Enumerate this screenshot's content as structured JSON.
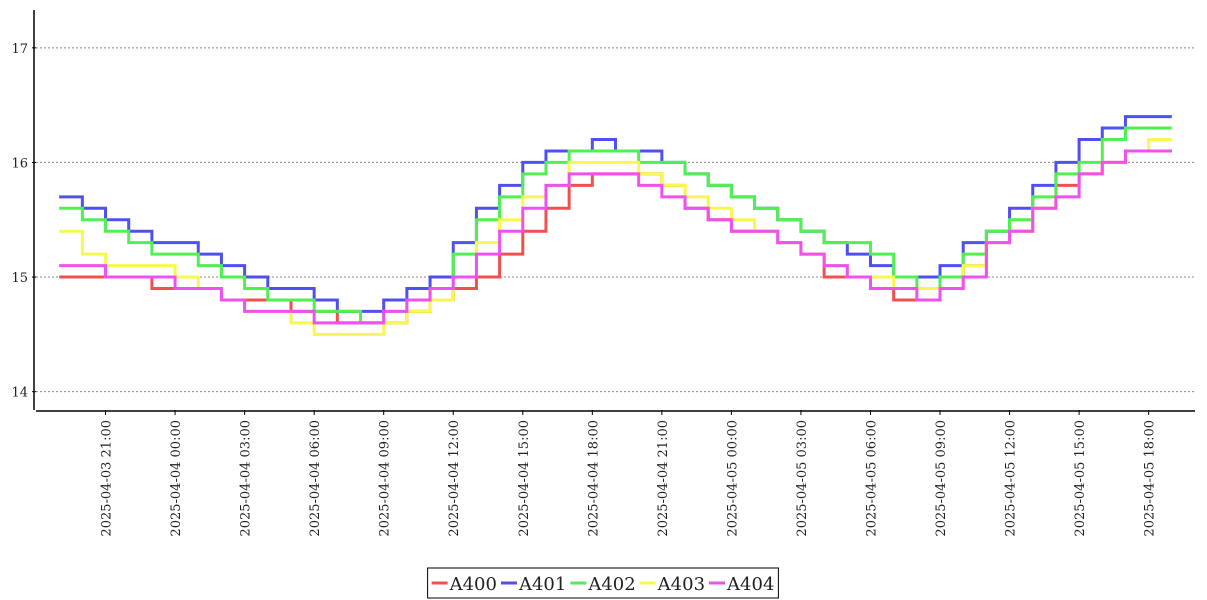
{
  "chart_data": {
    "type": "step-line",
    "x": [
      "2025-04-03 19:00",
      "2025-04-03 20:00",
      "2025-04-03 21:00",
      "2025-04-03 22:00",
      "2025-04-03 23:00",
      "2025-04-04 00:00",
      "2025-04-04 01:00",
      "2025-04-04 02:00",
      "2025-04-04 03:00",
      "2025-04-04 04:00",
      "2025-04-04 05:00",
      "2025-04-04 06:00",
      "2025-04-04 07:00",
      "2025-04-04 08:00",
      "2025-04-04 09:00",
      "2025-04-04 10:00",
      "2025-04-04 11:00",
      "2025-04-04 12:00",
      "2025-04-04 13:00",
      "2025-04-04 14:00",
      "2025-04-04 15:00",
      "2025-04-04 16:00",
      "2025-04-04 17:00",
      "2025-04-04 18:00",
      "2025-04-04 19:00",
      "2025-04-04 20:00",
      "2025-04-04 21:00",
      "2025-04-04 22:00",
      "2025-04-04 23:00",
      "2025-04-05 00:00",
      "2025-04-05 01:00",
      "2025-04-05 02:00",
      "2025-04-05 03:00",
      "2025-04-05 04:00",
      "2025-04-05 05:00",
      "2025-04-05 06:00",
      "2025-04-05 07:00",
      "2025-04-05 08:00",
      "2025-04-05 09:00",
      "2025-04-05 10:00",
      "2025-04-05 11:00",
      "2025-04-05 12:00",
      "2025-04-05 13:00",
      "2025-04-05 14:00",
      "2025-04-05 15:00",
      "2025-04-05 16:00",
      "2025-04-05 17:00",
      "2025-04-05 18:00",
      "2025-04-05 19:00"
    ],
    "series": [
      {
        "name": "A400",
        "color": "#f05050",
        "values": [
          15.0,
          15.0,
          15.0,
          15.0,
          14.9,
          14.9,
          14.9,
          14.8,
          14.8,
          14.8,
          14.7,
          14.7,
          14.6,
          14.6,
          14.6,
          14.7,
          14.8,
          14.9,
          15.0,
          15.2,
          15.4,
          15.6,
          15.8,
          15.9,
          15.9,
          15.9,
          15.8,
          15.6,
          15.5,
          15.4,
          15.4,
          15.3,
          15.2,
          15.0,
          15.0,
          14.9,
          14.8,
          14.8,
          14.9,
          15.1,
          15.3,
          15.4,
          15.6,
          15.8,
          15.9,
          16.0,
          16.1,
          16.1,
          16.1
        ]
      },
      {
        "name": "A401",
        "color": "#5050f0",
        "values": [
          15.7,
          15.6,
          15.5,
          15.4,
          15.3,
          15.3,
          15.2,
          15.1,
          15.0,
          14.9,
          14.9,
          14.8,
          14.7,
          14.7,
          14.8,
          14.9,
          15.0,
          15.3,
          15.6,
          15.8,
          16.0,
          16.1,
          16.1,
          16.2,
          16.1,
          16.1,
          16.0,
          15.9,
          15.8,
          15.7,
          15.6,
          15.5,
          15.4,
          15.3,
          15.2,
          15.1,
          15.0,
          15.0,
          15.1,
          15.3,
          15.4,
          15.6,
          15.8,
          16.0,
          16.2,
          16.3,
          16.4,
          16.4,
          16.4
        ]
      },
      {
        "name": "A402",
        "color": "#50f050",
        "values": [
          15.6,
          15.5,
          15.4,
          15.3,
          15.2,
          15.2,
          15.1,
          15.0,
          14.9,
          14.8,
          14.8,
          14.7,
          14.7,
          14.6,
          14.7,
          14.8,
          14.9,
          15.2,
          15.5,
          15.7,
          15.9,
          16.0,
          16.1,
          16.1,
          16.1,
          16.0,
          16.0,
          15.9,
          15.8,
          15.7,
          15.6,
          15.5,
          15.4,
          15.3,
          15.3,
          15.2,
          15.0,
          14.9,
          15.0,
          15.2,
          15.4,
          15.5,
          15.7,
          15.9,
          16.0,
          16.2,
          16.3,
          16.3,
          16.3
        ]
      },
      {
        "name": "A403",
        "color": "#f8f850",
        "values": [
          15.4,
          15.2,
          15.1,
          15.1,
          15.1,
          15.0,
          14.9,
          14.8,
          14.7,
          14.7,
          14.6,
          14.5,
          14.5,
          14.5,
          14.6,
          14.7,
          14.8,
          15.0,
          15.3,
          15.5,
          15.7,
          15.8,
          16.0,
          16.0,
          16.0,
          15.9,
          15.8,
          15.7,
          15.6,
          15.5,
          15.4,
          15.3,
          15.2,
          15.1,
          15.0,
          15.0,
          14.9,
          14.9,
          14.9,
          15.1,
          15.3,
          15.4,
          15.6,
          15.7,
          15.9,
          16.0,
          16.1,
          16.2,
          16.2
        ]
      },
      {
        "name": "A404",
        "color": "#f050f0",
        "values": [
          15.1,
          15.1,
          15.0,
          15.0,
          15.0,
          14.9,
          14.9,
          14.8,
          14.7,
          14.7,
          14.7,
          14.6,
          14.6,
          14.6,
          14.7,
          14.8,
          14.9,
          15.0,
          15.2,
          15.4,
          15.6,
          15.8,
          15.9,
          15.9,
          15.9,
          15.8,
          15.7,
          15.6,
          15.5,
          15.4,
          15.4,
          15.3,
          15.2,
          15.1,
          15.0,
          14.9,
          14.9,
          14.8,
          14.9,
          15.0,
          15.3,
          15.4,
          15.6,
          15.7,
          15.9,
          16.0,
          16.1,
          16.1,
          16.1
        ]
      }
    ],
    "xlim": [
      "2025-04-03 18:00",
      "2025-04-05 20:00"
    ],
    "xticks": [
      "2025-04-03 21:00",
      "2025-04-04 00:00",
      "2025-04-04 03:00",
      "2025-04-04 06:00",
      "2025-04-04 09:00",
      "2025-04-04 12:00",
      "2025-04-04 15:00",
      "2025-04-04 18:00",
      "2025-04-04 21:00",
      "2025-04-05 00:00",
      "2025-04-05 03:00",
      "2025-04-05 06:00",
      "2025-04-05 09:00",
      "2025-04-05 12:00",
      "2025-04-05 15:00",
      "2025-04-05 18:00"
    ],
    "ylim": [
      13.84,
      17.33
    ],
    "yticks": [
      14,
      15,
      16,
      17
    ],
    "grid": true,
    "legend": "bottom"
  }
}
